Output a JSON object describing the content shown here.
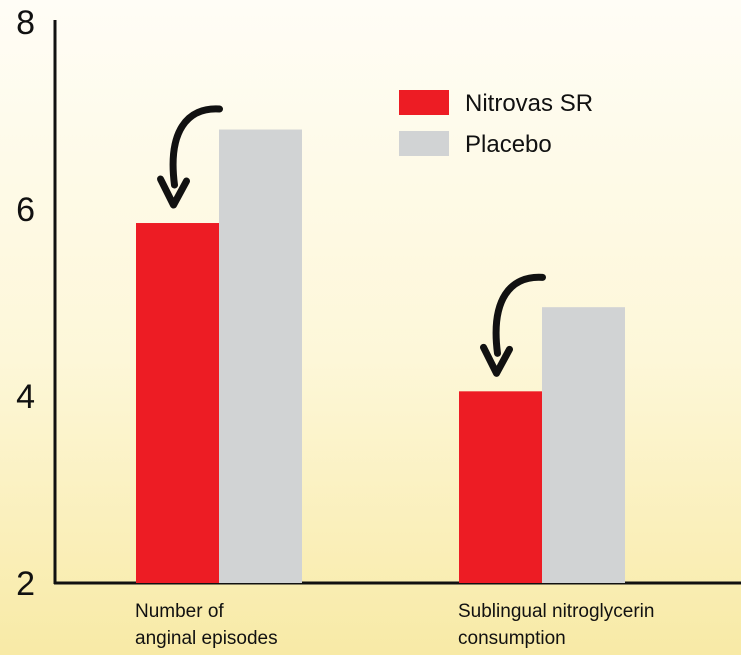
{
  "chart_data": {
    "type": "bar",
    "categories": [
      [
        "Number of",
        "anginal episodes"
      ],
      [
        "Sublingual nitroglycerin",
        "consumption"
      ]
    ],
    "series": [
      {
        "name": "Nitrovas SR",
        "color": "#ed1c24",
        "values": [
          5.85,
          4.05
        ]
      },
      {
        "name": "Placebo",
        "color": "#d1d3d4",
        "values": [
          6.85,
          4.95
        ]
      }
    ],
    "yticks": [
      2,
      4,
      6,
      8
    ],
    "ylim": [
      2,
      8
    ],
    "legend_position": "top-right",
    "grid": false,
    "annotations": [
      "curved-arrow-icon",
      "curved-arrow-icon"
    ]
  }
}
